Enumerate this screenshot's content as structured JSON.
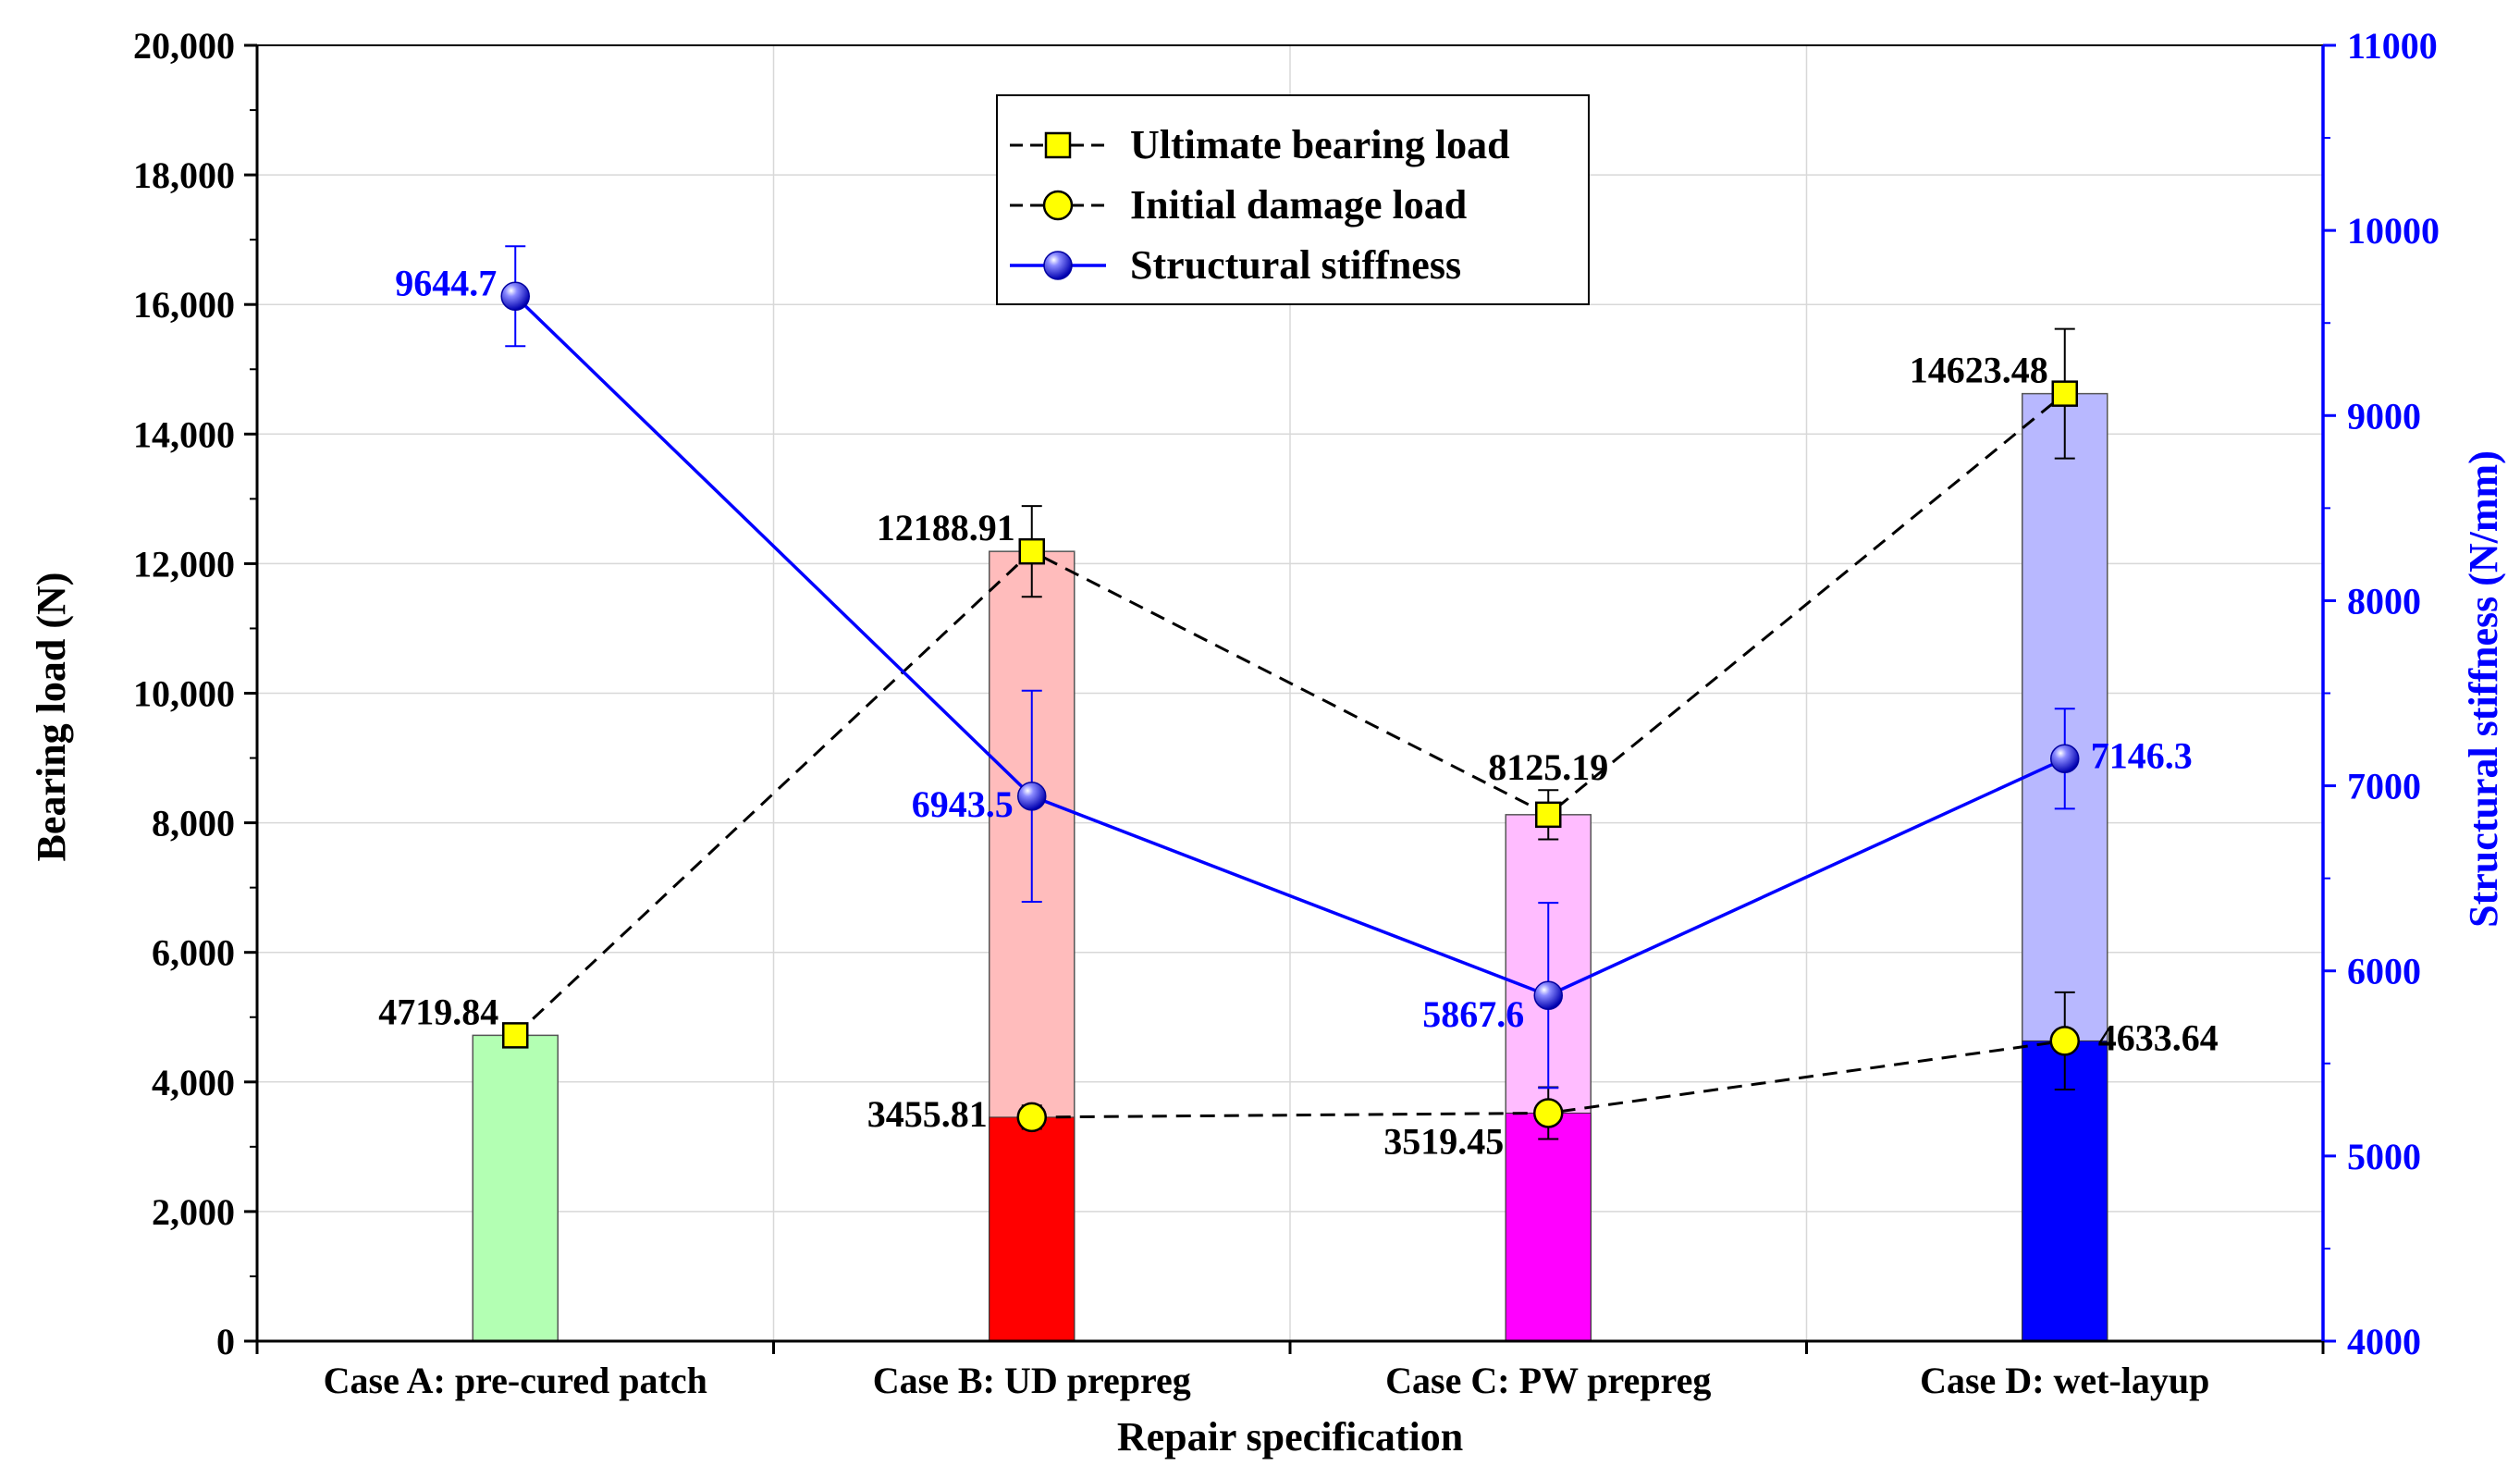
{
  "chart_data": {
    "type": "bar",
    "xlabel": "Repair specification",
    "ylabel": "Bearing load (N)",
    "y2label": "Structural stiffness (N/mm)",
    "ylim": [
      0,
      20000
    ],
    "y2lim": [
      4000,
      11000
    ],
    "categories": [
      "Case A: pre-cured patch",
      "Case B: UD prepreg",
      "Case C: PW prepreg",
      "Case D: wet-layup"
    ],
    "y_ticks": [
      "0",
      "2,000",
      "4,000",
      "6,000",
      "8,000",
      "10,000",
      "12,000",
      "14,000",
      "16,000",
      "18,000",
      "20,000"
    ],
    "y2_ticks": [
      "4000",
      "5000",
      "6000",
      "7000",
      "8000",
      "9000",
      "10000",
      "11000"
    ],
    "bar_colors": {
      "ultimate": [
        "#b3ffb3",
        "#ffbcbc",
        "#ffbcff",
        "#b8b8ff"
      ],
      "initial": [
        null,
        "#ff0000",
        "#ff00ff",
        "#0000ff"
      ]
    },
    "series": [
      {
        "name": "Ultimate bearing load",
        "axis": "left",
        "values": [
          4719.84,
          12188.91,
          8125.19,
          14623.48
        ],
        "labels": [
          "4719.84",
          "12188.91",
          "8125.19",
          "14623.48"
        ],
        "errors": [
          null,
          700,
          380,
          1000
        ],
        "marker": "square",
        "color": "#000000",
        "marker_fill": "#ffff00"
      },
      {
        "name": "Initial damage load",
        "axis": "left",
        "values": [
          null,
          3455.81,
          3519.45,
          4633.64
        ],
        "labels": [
          null,
          "3455.81",
          "3519.45",
          "4633.64"
        ],
        "errors": [
          null,
          180,
          400,
          750
        ],
        "marker": "circle",
        "color": "#000000",
        "marker_fill": "#ffff00"
      },
      {
        "name": "Structural stiffness",
        "axis": "right",
        "values": [
          9644.7,
          6943.5,
          5867.6,
          7146.3
        ],
        "labels": [
          "9644.7",
          "6943.5",
          "5867.6",
          "7146.3"
        ],
        "errors": [
          270,
          570,
          500,
          270
        ],
        "marker": "sphere",
        "color": "#0000ff",
        "marker_fill": "#0000ff"
      }
    ],
    "legend": {
      "position": "top-center",
      "entries": [
        "Ultimate bearing load",
        "Initial damage load",
        "Structural stiffness"
      ]
    },
    "grid": true
  }
}
